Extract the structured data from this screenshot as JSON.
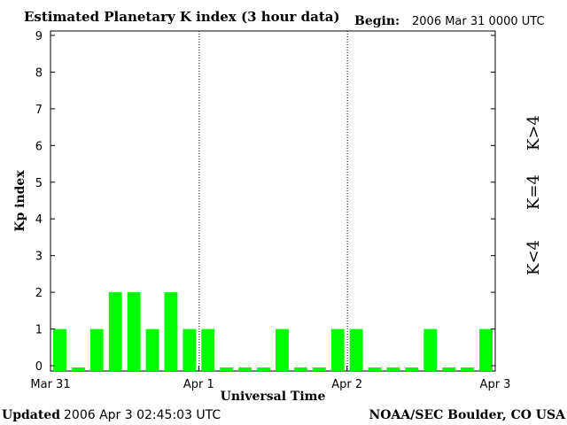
{
  "header": {
    "title": "Estimated Planetary K index (3 hour data)",
    "begin_label": "Begin:",
    "begin_value": "2006 Mar 31 0000 UTC"
  },
  "footer": {
    "updated_label": "Updated",
    "updated_value": "2006 Apr  3 02:45:03 UTC",
    "source": "NOAA/SEC Boulder, CO USA"
  },
  "legend": {
    "high": "K>4",
    "equal": "K=4",
    "low": "K<4"
  },
  "colors": {
    "low": "#00ff00",
    "equal": "#ffd700",
    "high": "#ff2a00"
  },
  "chart_data": {
    "type": "bar",
    "title": "Estimated Planetary K index (3 hour data)",
    "xlabel": "Universal Time",
    "ylabel": "Kp index",
    "ylim": [
      0,
      9
    ],
    "yticks": [
      "0",
      "1",
      "2",
      "3",
      "4",
      "5",
      "6",
      "7",
      "8",
      "9"
    ],
    "x_tick_labels": [
      "Mar 31",
      "Apr 1",
      "Apr 2",
      "Apr 3"
    ],
    "day_separators": [
      "Apr 1",
      "Apr 2"
    ],
    "grid": false,
    "interval_hours": 3,
    "categories": [
      "Mar 31 00-03",
      "Mar 31 03-06",
      "Mar 31 06-09",
      "Mar 31 09-12",
      "Mar 31 12-15",
      "Mar 31 15-18",
      "Mar 31 18-21",
      "Mar 31 21-24",
      "Apr 1 00-03",
      "Apr 1 03-06",
      "Apr 1 06-09",
      "Apr 1 09-12",
      "Apr 1 12-15",
      "Apr 1 15-18",
      "Apr 1 18-21",
      "Apr 1 21-24",
      "Apr 2 00-03",
      "Apr 2 03-06",
      "Apr 2 06-09",
      "Apr 2 09-12",
      "Apr 2 12-15",
      "Apr 2 15-18",
      "Apr 2 18-21",
      "Apr 2 21-24"
    ],
    "values": [
      1,
      0,
      1,
      2,
      2,
      1,
      2,
      1,
      1,
      0,
      0,
      0,
      1,
      0,
      0,
      1,
      1,
      0,
      0,
      0,
      1,
      0,
      0,
      1
    ]
  }
}
